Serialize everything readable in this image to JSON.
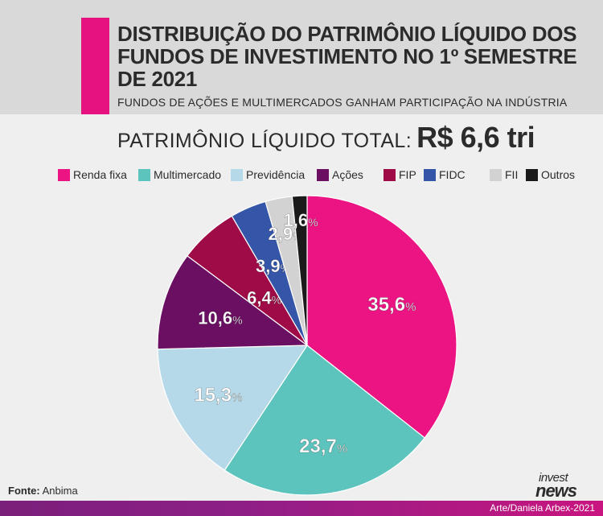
{
  "header": {
    "title": "DISTRIBUIÇÃO DO PATRIMÔNIO LÍQUIDO DOS FUNDOS DE INVESTIMENTO NO 1º SEMESTRE DE 2021",
    "subtitle": "FUNDOS DE AÇÕES E MULTIMERCADOS GANHAM PARTICIPAÇÃO NA INDÚSTRIA"
  },
  "total": {
    "label": "PATRIMÔNIO LÍQUIDO TOTAL:",
    "value": "R$ 6,6 tri"
  },
  "chart_data": {
    "type": "pie",
    "unit": "%",
    "slices": [
      {
        "label": "Renda fixa",
        "value": 35.6,
        "display": "35,6",
        "color": "#ec1382"
      },
      {
        "label": "Multimercado",
        "value": 23.7,
        "display": "23,7",
        "color": "#5cc4bd"
      },
      {
        "label": "Previdência",
        "value": 15.3,
        "display": "15,3",
        "color": "#b5d9e8"
      },
      {
        "label": "Ações",
        "value": 10.6,
        "display": "10,6",
        "color": "#6b0f62"
      },
      {
        "label": "FIP",
        "value": 6.4,
        "display": "6,4",
        "color": "#9e0b47"
      },
      {
        "label": "FIDC",
        "value": 3.9,
        "display": "3,9",
        "color": "#3555a8"
      },
      {
        "label": "FII",
        "value": 2.9,
        "display": "2,9",
        "color": "#d2d2d2"
      },
      {
        "label": "Outros",
        "value": 1.6,
        "display": "1,6",
        "color": "#1a1a1a"
      }
    ]
  },
  "footer": {
    "source_label": "Fonte:",
    "source_value": "Anbima",
    "credit": "Arte/Daniela Arbex-2021",
    "logo_top": "invest",
    "logo_bottom": "news"
  }
}
